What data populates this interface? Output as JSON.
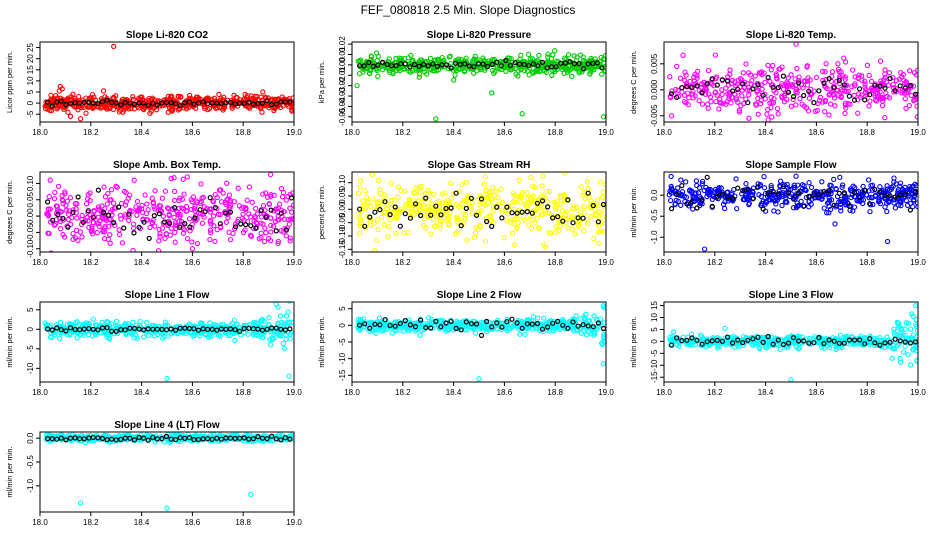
{
  "page": {
    "title": "FEF_080818  2.5 Min. Slope Diagnostics"
  },
  "colors": {
    "axis": "#000000",
    "mean": "#000000"
  },
  "x_ticks": [
    "18.0",
    "18.2",
    "18.4",
    "18.6",
    "18.8",
    "19.0"
  ],
  "chart_data": [
    {
      "type": "scatter",
      "title": "Slope Li-820 CO2",
      "ylabel": "Licor ppm per min.",
      "color": "#ff0000",
      "xlim": [
        18.0,
        19.0
      ],
      "ylim": [
        -8.5,
        27.5
      ],
      "ytick_values": [
        -5,
        0,
        5,
        10,
        15,
        20,
        25
      ],
      "ytick_labels": [
        "-5",
        "0",
        "5",
        "10",
        "15",
        "20",
        "25"
      ],
      "seed": 11,
      "n_points": 520,
      "spread": 1.8,
      "outliers": [
        [
          18.29,
          25.5
        ],
        [
          18.08,
          7.5
        ],
        [
          18.16,
          -7.0
        ],
        [
          18.25,
          5.5
        ],
        [
          18.12,
          -6.0
        ]
      ],
      "mean_every": 0.018,
      "mean_spread": 0.5
    },
    {
      "type": "scatter",
      "title": "Slope Li-820 Pressure",
      "ylabel": "kPa per min.",
      "color": "#00cc00",
      "xlim": [
        18.0,
        19.0
      ],
      "ylim": [
        -0.055,
        0.022
      ],
      "ytick_values": [
        -0.05,
        -0.04,
        -0.03,
        -0.02,
        -0.01,
        0.0,
        0.01,
        0.02
      ],
      "ytick_labels": [
        "-0.05",
        "-0.04",
        "-0.03",
        "-0.02",
        "-0.01",
        "0.00",
        "0.01",
        "0.02"
      ],
      "seed": 23,
      "n_points": 520,
      "spread": 0.004,
      "outliers": [
        [
          18.33,
          -0.052
        ],
        [
          18.67,
          -0.047
        ],
        [
          18.99,
          -0.05
        ],
        [
          18.55,
          -0.027
        ],
        [
          18.02,
          -0.02
        ]
      ],
      "mean_every": 0.018,
      "mean_spread": 0.0018
    },
    {
      "type": "scatter",
      "title": "Slope Li-820 Temp.",
      "ylabel": "degrees C per min.",
      "color": "#ff00ff",
      "xlim": [
        18.0,
        19.0
      ],
      "ylim": [
        -0.0062,
        0.0092
      ],
      "ytick_values": [
        -0.005,
        0.0,
        0.005
      ],
      "ytick_labels": [
        "-0.005",
        "0.000",
        "0.005"
      ],
      "seed": 37,
      "n_points": 420,
      "spread": 0.0022,
      "outliers": [
        [
          18.52,
          0.0088
        ],
        [
          18.41,
          -0.0058
        ],
        [
          18.03,
          -0.005
        ]
      ],
      "mean_every": 0.02,
      "mean_spread": 0.0012
    },
    {
      "type": "scatter",
      "title": "Slope Amb. Box Temp.",
      "ylabel": "degrees C per min.",
      "color": "#ff00ff",
      "xlim": [
        18.0,
        19.0
      ],
      "ylim": [
        -0.11,
        0.135
      ],
      "ytick_values": [
        -0.1,
        -0.05,
        0.0,
        0.05,
        0.1
      ],
      "ytick_labels": [
        "-0.10",
        "-0.05",
        "0.00",
        "0.05",
        "0.10"
      ],
      "seed": 41,
      "n_points": 440,
      "spread": 0.045,
      "outliers": [
        [
          18.58,
          0.12
        ],
        [
          18.04,
          0.11
        ],
        [
          18.6,
          -0.1
        ]
      ],
      "mean_every": 0.02,
      "mean_spread": 0.035
    },
    {
      "type": "scatter",
      "title": "Slope Gas Stream RH",
      "ylabel": "percent per min.",
      "color": "#ffff00",
      "xlim": [
        18.0,
        19.0
      ],
      "ylim": [
        -0.16,
        0.14
      ],
      "ytick_values": [
        -0.15,
        -0.1,
        -0.05,
        0.0,
        0.05,
        0.1
      ],
      "ytick_labels": [
        "-0.15",
        "-0.10",
        "-0.05",
        "0.00",
        "0.05",
        "0.10"
      ],
      "seed": 53,
      "n_points": 440,
      "spread": 0.05,
      "outliers": [
        [
          18.09,
          -0.155
        ],
        [
          18.08,
          0.13
        ],
        [
          18.75,
          0.125
        ]
      ],
      "mean_every": 0.02,
      "mean_spread": 0.04
    },
    {
      "type": "scatter",
      "title": "Slope Sample Flow",
      "ylabel": "ml/min per min.",
      "color": "#0000ff",
      "xlim": [
        18.0,
        19.0
      ],
      "ylim": [
        -1.35,
        0.55
      ],
      "ytick_values": [
        -1.0,
        -0.5,
        0.0
      ],
      "ytick_labels": [
        "-1.0",
        "-0.5",
        "0.0"
      ],
      "seed": 61,
      "n_points": 460,
      "spread": 0.17,
      "outliers": [
        [
          18.16,
          -1.28
        ],
        [
          18.88,
          -1.1
        ],
        [
          18.52,
          0.45
        ]
      ],
      "mean_every": 0.02,
      "mean_spread": 0.16
    },
    {
      "type": "scatter",
      "title": "Slope Line 1 Flow",
      "ylabel": "ml/min per min.",
      "color": "#00ffff",
      "xlim": [
        18.0,
        19.0
      ],
      "ylim": [
        -13.5,
        7.0
      ],
      "ytick_values": [
        -10,
        -5,
        0,
        5
      ],
      "ytick_labels": [
        "-10",
        "-5",
        "0",
        "5"
      ],
      "seed": 71,
      "n_points": 480,
      "spread": 0.9,
      "flare": 2.8,
      "outliers": [
        [
          18.5,
          -12.6
        ],
        [
          18.98,
          -12.0
        ],
        [
          18.93,
          6.4
        ]
      ],
      "mean_every": 0.018,
      "mean_spread": 0.2
    },
    {
      "type": "scatter",
      "title": "Slope Line 2 Flow",
      "ylabel": "ml/min per min.",
      "color": "#00ffff",
      "xlim": [
        18.0,
        19.0
      ],
      "ylim": [
        -17.0,
        7.0
      ],
      "ytick_values": [
        -15,
        -10,
        -5,
        0,
        5
      ],
      "ytick_labels": [
        "-15",
        "-10",
        "-5",
        "0",
        "5"
      ],
      "seed": 83,
      "n_points": 480,
      "spread": 0.9,
      "flare": 3.0,
      "outliers": [
        [
          18.5,
          -16.0
        ],
        [
          18.99,
          -11.5
        ],
        [
          18.99,
          5.5
        ]
      ],
      "mean_every": 0.02,
      "mean_spread": 0.9
    },
    {
      "type": "scatter",
      "title": "Slope Line 3 Flow",
      "ylabel": "ml/min per min.",
      "color": "#00ffff",
      "xlim": [
        18.0,
        19.0
      ],
      "ylim": [
        -17.0,
        16.5
      ],
      "ytick_values": [
        -15,
        -10,
        -5,
        0,
        5,
        10,
        15
      ],
      "ytick_labels": [
        "-15",
        "-10",
        "-5",
        "0",
        "5",
        "10",
        "15"
      ],
      "seed": 97,
      "n_points": 480,
      "spread": 1.3,
      "flare": 4.0,
      "outliers": [
        [
          18.5,
          -16.0
        ],
        [
          18.99,
          15.0
        ],
        [
          18.24,
          5.5
        ]
      ],
      "mean_every": 0.02,
      "mean_spread": 1.0
    },
    {
      "type": "scatter",
      "title": "Slope Line 4 (LT) Flow",
      "ylabel": "ml/min per min.",
      "color": "#00ffff",
      "xlim": [
        18.0,
        19.0
      ],
      "ylim": [
        -1.55,
        0.13
      ],
      "ytick_values": [
        -1.0,
        -0.5,
        0.0
      ],
      "ytick_labels": [
        "-1.0",
        "-0.5",
        "0.0"
      ],
      "seed": 109,
      "n_points": 480,
      "spread": 0.035,
      "outliers": [
        [
          18.16,
          -1.36
        ],
        [
          18.5,
          -1.47
        ],
        [
          18.83,
          -1.18
        ]
      ],
      "mean_every": 0.018,
      "mean_spread": 0.02
    }
  ]
}
